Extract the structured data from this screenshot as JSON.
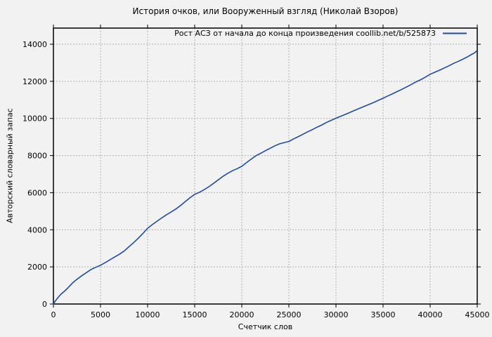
{
  "chart_data": {
    "type": "line",
    "title": "История очков, или Вооруженный взгляд (Николай Взоров)",
    "xlabel": "Счетчик слов",
    "ylabel": "Авторский словарный запас",
    "legend": "Рост АСЗ от начала до конца произведения  coollib.net/b/525873",
    "legend_position": "top-right-inside",
    "grid": true,
    "xlim": [
      0,
      45000
    ],
    "ylim": [
      0,
      14870
    ],
    "x_ticks": [
      0,
      5000,
      10000,
      15000,
      20000,
      25000,
      30000,
      35000,
      40000,
      45000
    ],
    "y_ticks": [
      0,
      2000,
      4000,
      6000,
      8000,
      10000,
      12000,
      14000
    ],
    "colors": {
      "line": "#1e4ca1",
      "grid": "#b0b0b0",
      "border": "#000000",
      "background": "#f2f2f2"
    },
    "series": [
      {
        "name": "Рост АСЗ",
        "points": [
          [
            0,
            0
          ],
          [
            200,
            160
          ],
          [
            500,
            360
          ],
          [
            800,
            530
          ],
          [
            1200,
            700
          ],
          [
            1600,
            900
          ],
          [
            2000,
            1120
          ],
          [
            2500,
            1330
          ],
          [
            3000,
            1520
          ],
          [
            3500,
            1690
          ],
          [
            4000,
            1860
          ],
          [
            4500,
            1980
          ],
          [
            5000,
            2090
          ],
          [
            5500,
            2230
          ],
          [
            6000,
            2380
          ],
          [
            6500,
            2530
          ],
          [
            7000,
            2680
          ],
          [
            7500,
            2850
          ],
          [
            8000,
            3080
          ],
          [
            8500,
            3300
          ],
          [
            9000,
            3540
          ],
          [
            9500,
            3800
          ],
          [
            10000,
            4080
          ],
          [
            10500,
            4280
          ],
          [
            11000,
            4460
          ],
          [
            11500,
            4640
          ],
          [
            12000,
            4810
          ],
          [
            12500,
            4960
          ],
          [
            13000,
            5120
          ],
          [
            13500,
            5310
          ],
          [
            14000,
            5520
          ],
          [
            14500,
            5730
          ],
          [
            15000,
            5910
          ],
          [
            15500,
            6020
          ],
          [
            16000,
            6160
          ],
          [
            16500,
            6320
          ],
          [
            17000,
            6500
          ],
          [
            17500,
            6690
          ],
          [
            18000,
            6880
          ],
          [
            18500,
            7040
          ],
          [
            19000,
            7180
          ],
          [
            19500,
            7290
          ],
          [
            20000,
            7420
          ],
          [
            20500,
            7620
          ],
          [
            21000,
            7810
          ],
          [
            21500,
            7990
          ],
          [
            22000,
            8120
          ],
          [
            22500,
            8260
          ],
          [
            23000,
            8390
          ],
          [
            23500,
            8520
          ],
          [
            24000,
            8630
          ],
          [
            24500,
            8700
          ],
          [
            25000,
            8760
          ],
          [
            25500,
            8900
          ],
          [
            26000,
            9020
          ],
          [
            26500,
            9150
          ],
          [
            27000,
            9280
          ],
          [
            27500,
            9400
          ],
          [
            28000,
            9530
          ],
          [
            28500,
            9650
          ],
          [
            29000,
            9790
          ],
          [
            29500,
            9900
          ],
          [
            30000,
            10010
          ],
          [
            31000,
            10220
          ],
          [
            32000,
            10440
          ],
          [
            33000,
            10650
          ],
          [
            34000,
            10860
          ],
          [
            35000,
            11090
          ],
          [
            35500,
            11210
          ],
          [
            36000,
            11330
          ],
          [
            36500,
            11450
          ],
          [
            37000,
            11570
          ],
          [
            37500,
            11700
          ],
          [
            38000,
            11830
          ],
          [
            38500,
            11970
          ],
          [
            39000,
            12090
          ],
          [
            39500,
            12230
          ],
          [
            40000,
            12380
          ],
          [
            40500,
            12490
          ],
          [
            41000,
            12600
          ],
          [
            41500,
            12720
          ],
          [
            42000,
            12840
          ],
          [
            42500,
            12970
          ],
          [
            43000,
            13080
          ],
          [
            43500,
            13200
          ],
          [
            44000,
            13330
          ],
          [
            44400,
            13450
          ],
          [
            44700,
            13530
          ],
          [
            44900,
            13620
          ]
        ]
      }
    ]
  }
}
